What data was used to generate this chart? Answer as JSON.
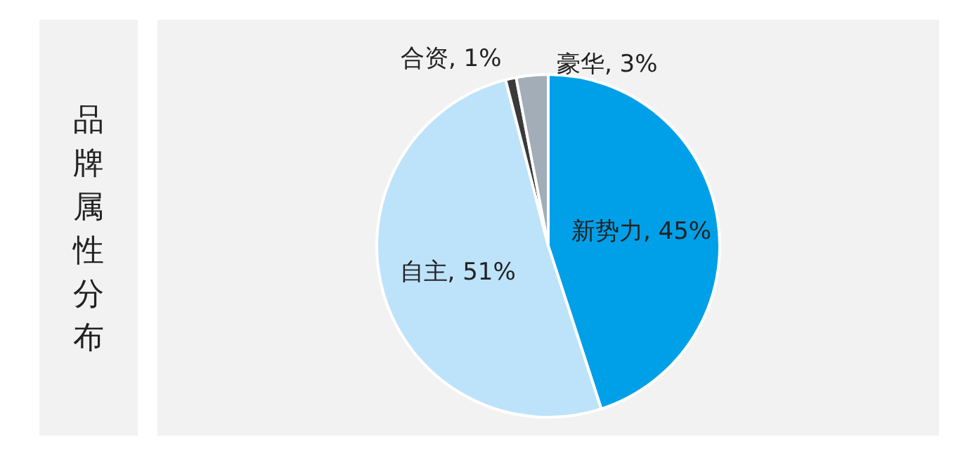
{
  "chart_data": {
    "type": "pie",
    "title": "品牌属性分布",
    "categories": [
      "新势力",
      "自主",
      "合资",
      "豪华"
    ],
    "values": [
      45,
      51,
      1,
      3
    ],
    "value_labels": [
      "45%",
      "51%",
      "1%",
      "3%"
    ],
    "colors": [
      "#00a0e9",
      "#bde3fa",
      "#3a3a3a",
      "#a3adb8"
    ],
    "legend": false
  }
}
